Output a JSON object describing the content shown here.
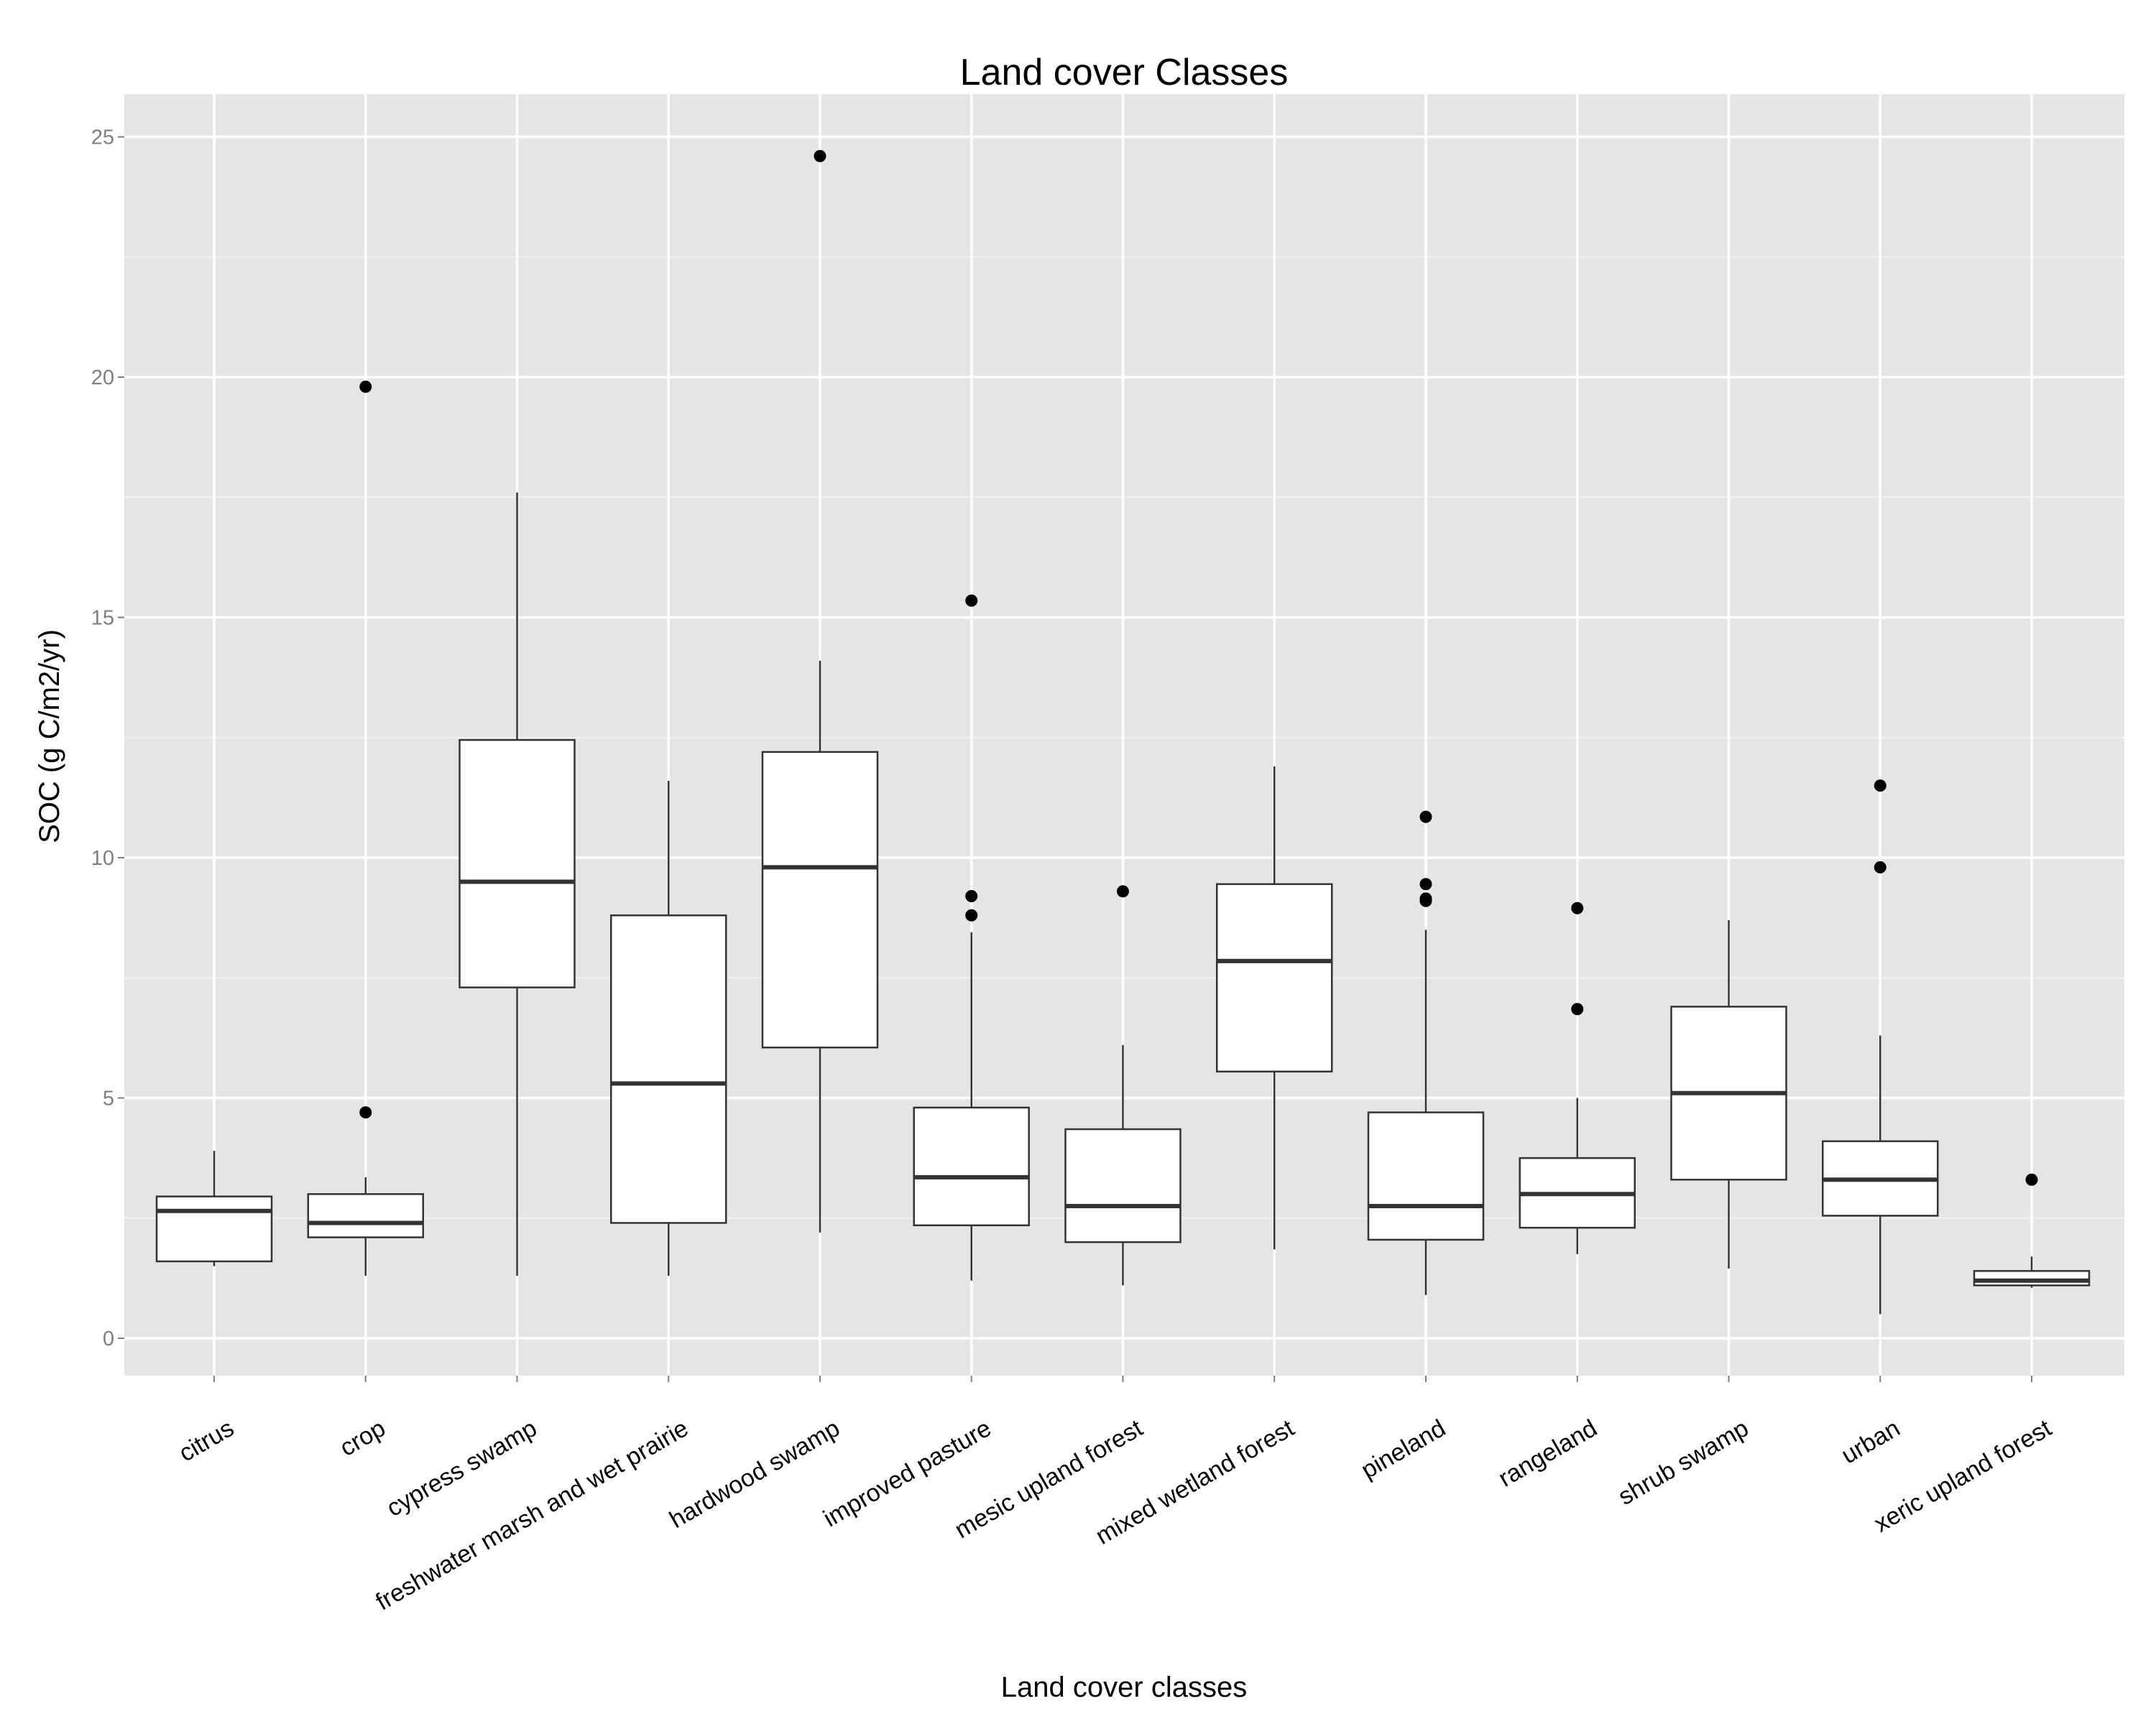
{
  "chart_data": {
    "type": "boxplot",
    "title": "Land cover Classes",
    "xlabel": "Land cover classes",
    "ylabel": "SOC (g C/m2/yr)",
    "ylim": [
      -0.75,
      26.1
    ],
    "yticks": [
      0,
      5,
      10,
      15,
      20,
      25
    ],
    "grid": true,
    "legend": "none",
    "categories": [
      "citrus",
      "crop",
      "cypress swamp",
      "freshwater marsh and wet prairie",
      "hardwood swamp",
      "improved pasture",
      "mesic upland forest",
      "mixed wetland forest",
      "pineland",
      "rangeland",
      "shrub swamp",
      "urban",
      "xeric upland forest"
    ],
    "boxes": [
      {
        "low": 1.5,
        "q1": 1.6,
        "median": 2.65,
        "q3": 2.95,
        "high": 3.9,
        "outliers": []
      },
      {
        "low": 1.3,
        "q1": 2.1,
        "median": 2.4,
        "q3": 3.0,
        "high": 3.35,
        "outliers": [
          4.7,
          19.8
        ]
      },
      {
        "low": 1.3,
        "q1": 7.3,
        "median": 9.5,
        "q3": 12.45,
        "high": 17.6,
        "outliers": []
      },
      {
        "low": 1.3,
        "q1": 2.4,
        "median": 5.3,
        "q3": 8.8,
        "high": 11.6,
        "outliers": []
      },
      {
        "low": 2.2,
        "q1": 6.05,
        "median": 9.8,
        "q3": 12.2,
        "high": 14.1,
        "outliers": [
          24.6
        ]
      },
      {
        "low": 1.2,
        "q1": 2.35,
        "median": 3.35,
        "q3": 4.8,
        "high": 8.45,
        "outliers": [
          8.8,
          9.2,
          15.35
        ]
      },
      {
        "low": 1.1,
        "q1": 2.0,
        "median": 2.75,
        "q3": 4.35,
        "high": 6.1,
        "outliers": [
          9.3
        ]
      },
      {
        "low": 1.85,
        "q1": 5.55,
        "median": 7.85,
        "q3": 9.45,
        "high": 11.9,
        "outliers": []
      },
      {
        "low": 0.9,
        "q1": 2.05,
        "median": 2.75,
        "q3": 4.7,
        "high": 8.5,
        "outliers": [
          9.1,
          9.15,
          9.45,
          10.85
        ]
      },
      {
        "low": 1.75,
        "q1": 2.3,
        "median": 3.0,
        "q3": 3.75,
        "high": 5.0,
        "outliers": [
          6.85,
          8.95
        ]
      },
      {
        "low": 1.45,
        "q1": 3.3,
        "median": 5.1,
        "q3": 6.9,
        "high": 8.7,
        "outliers": []
      },
      {
        "low": 0.5,
        "q1": 2.55,
        "median": 3.3,
        "q3": 4.1,
        "high": 6.3,
        "outliers": [
          9.8,
          11.5
        ]
      },
      {
        "low": 1.05,
        "q1": 1.1,
        "median": 1.2,
        "q3": 1.4,
        "high": 1.7,
        "outliers": [
          3.3
        ]
      }
    ]
  }
}
